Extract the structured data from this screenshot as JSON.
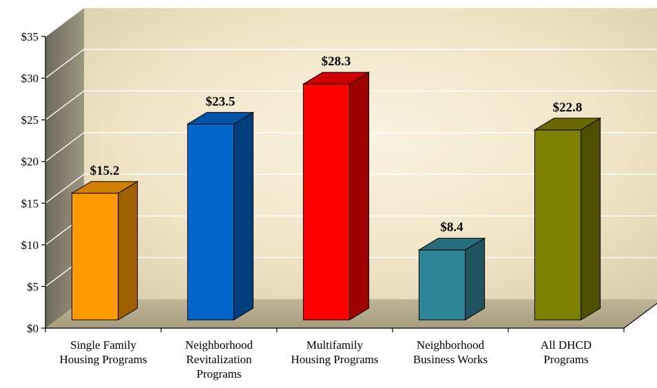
{
  "chart_data": {
    "type": "bar",
    "title": "",
    "xlabel": "",
    "ylabel": "",
    "ylim": [
      0,
      35
    ],
    "yticks": [
      0,
      5,
      10,
      15,
      20,
      25,
      30,
      35
    ],
    "ytick_labels": [
      "$0",
      "$5",
      "$10",
      "$15",
      "$20",
      "$25",
      "$30",
      "$35"
    ],
    "grid": true,
    "legend": "none",
    "categories": [
      [
        "Single Family",
        "Housing Programs"
      ],
      [
        "Neighborhood",
        "Revitalization",
        "Programs"
      ],
      [
        "Multifamily",
        "Housing Programs"
      ],
      [
        "Neighborhood",
        "Business Works"
      ],
      [
        "All DHCD",
        "Programs"
      ]
    ],
    "values": [
      15.2,
      23.5,
      28.3,
      8.4,
      22.8
    ],
    "data_labels": [
      "$15.2",
      "$23.5",
      "$28.3",
      "$8.4",
      "$22.8"
    ],
    "colors": [
      "#FF9900",
      "#0066CC",
      "#FF0000",
      "#2E8599",
      "#808000"
    ]
  }
}
